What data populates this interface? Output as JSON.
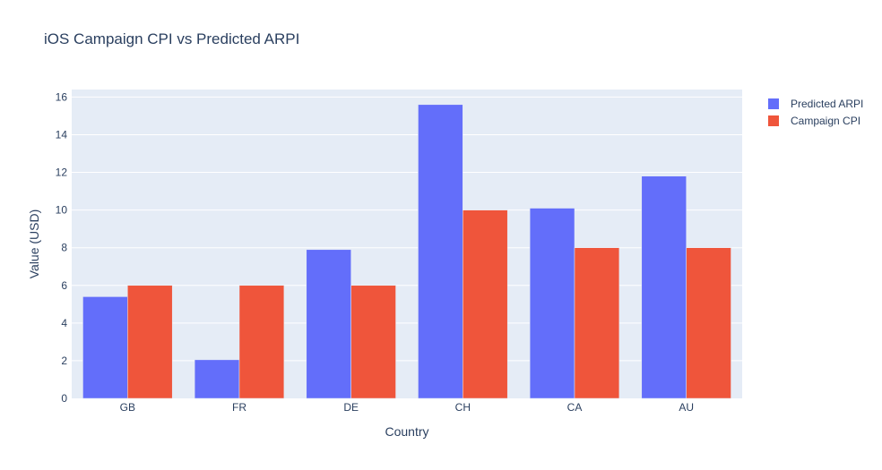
{
  "chart_data": {
    "type": "bar",
    "title": "iOS Campaign CPI vs Predicted ARPI",
    "xlabel": "Country",
    "ylabel": "Value (USD)",
    "categories": [
      "GB",
      "FR",
      "DE",
      "CH",
      "CA",
      "AU"
    ],
    "series": [
      {
        "name": "Predicted ARPI",
        "color": "#636efa",
        "values": [
          5.4,
          2.05,
          7.9,
          15.6,
          10.1,
          11.8
        ]
      },
      {
        "name": "Campaign CPI",
        "color": "#ef553b",
        "values": [
          6,
          6,
          6,
          10,
          8,
          8
        ]
      }
    ],
    "ylim": [
      0,
      16.4
    ],
    "yticks": [
      0,
      2,
      4,
      6,
      8,
      10,
      12,
      14,
      16
    ],
    "grid": true,
    "legend_position": "top-right",
    "plot_background": "#e5ecf6"
  }
}
